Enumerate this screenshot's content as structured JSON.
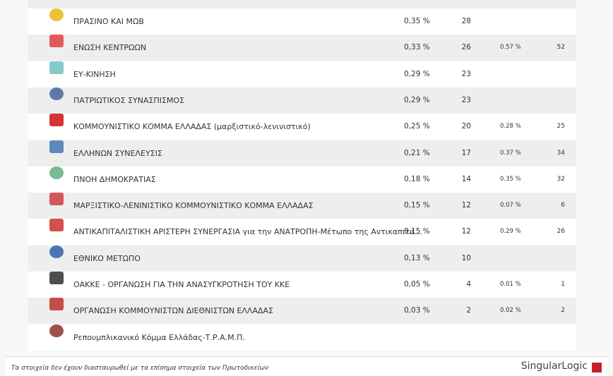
{
  "table": {
    "rows": [
      {
        "name": "ΠΡΑΣΙΝΟ ΚΑΙ ΜΩΒ",
        "percent": "0,35 %",
        "count": "28"
      },
      {
        "name": "ΕΝΩΣΗ ΚΕΝΤΡΩΩΝ",
        "percent": "0,33 %",
        "count": "26",
        "prev_percent": "0.57 %",
        "prev_count": "52"
      },
      {
        "name": "ΕΥ-ΚΙΝΗΣΗ",
        "percent": "0,29 %",
        "count": "23"
      },
      {
        "name": "ΠΑΤΡΙΩΤΙΚΟΣ ΣΥΝΑΣΠΙΣΜΟΣ",
        "percent": "0,29 %",
        "count": "23"
      },
      {
        "name": "ΚΟΜΜΟΥΝΙΣΤΙΚΟ ΚΟΜΜΑ ΕΛΛΑΔΑΣ (μαρξιστικό-λενινιστικό)",
        "percent": "0,25 %",
        "count": "20",
        "prev_percent": "0.28 %",
        "prev_count": "25"
      },
      {
        "name": "ΕΛΛΗΝΩΝ ΣΥΝΕΛΕΥΣΙΣ",
        "percent": "0,21 %",
        "count": "17",
        "prev_percent": "0.37 %",
        "prev_count": "34"
      },
      {
        "name": "ΠΝΟΗ ΔΗΜΟΚΡΑΤΙΑΣ",
        "percent": "0,18 %",
        "count": "14",
        "prev_percent": "0.35 %",
        "prev_count": "32"
      },
      {
        "name": "ΜΑΡΞΙΣΤΙΚΟ-ΛΕΝΙΝΙΣΤΙΚΟ ΚΟΜΜΟΥΝΙΣΤΙΚΟ ΚΟΜΜΑ ΕΛΛΑΔΑΣ",
        "percent": "0,15 %",
        "count": "12",
        "prev_percent": "0.07 %",
        "prev_count": "6"
      },
      {
        "name": "ΑΝΤΙΚΑΠΙΤΑΛΙΣΤΙΚΗ ΑΡΙΣΤΕΡΗ ΣΥΝΕΡΓΑΣΙΑ για την ΑΝΑΤΡΟΠΗ-Μέτωπο της Αντικαπιτα...",
        "percent": "0,15 %",
        "count": "12",
        "prev_percent": "0.29 %",
        "prev_count": "26"
      },
      {
        "name": "ΕΘΝΙΚΟ ΜΕΤΩΠΟ",
        "percent": "0,13 %",
        "count": "10"
      },
      {
        "name": "ΟΑΚΚΕ - ΟΡΓΑΝΩΣΗ ΓΙΑ ΤΗΝ ΑΝΑΣΥΓΚΡΟΤΗΣΗ ΤΟΥ ΚΚΕ",
        "percent": "0,05 %",
        "count": "4",
        "prev_percent": "0.01 %",
        "prev_count": "1"
      },
      {
        "name": "ΟΡΓΑΝΩΣΗ ΚΟΜΜΟΥΝΙΣΤΩΝ ΔΙΕΘΝΙΣΤΩΝ ΕΛΛΑΔΑΣ",
        "percent": "0,03 %",
        "count": "2",
        "prev_percent": "0.02 %",
        "prev_count": "2"
      },
      {
        "name": "Ρεπουμπλικανικό Κόμμα Ελλάδας-Τ.Ρ.Α.Μ.Π."
      }
    ]
  },
  "footer": {
    "note": "Τα στοιχεία δεν έχουν διασταυρωθεί με τα επίσημα στοιχεία των Πρωτοδικείων",
    "brand": "SingularLogic"
  }
}
